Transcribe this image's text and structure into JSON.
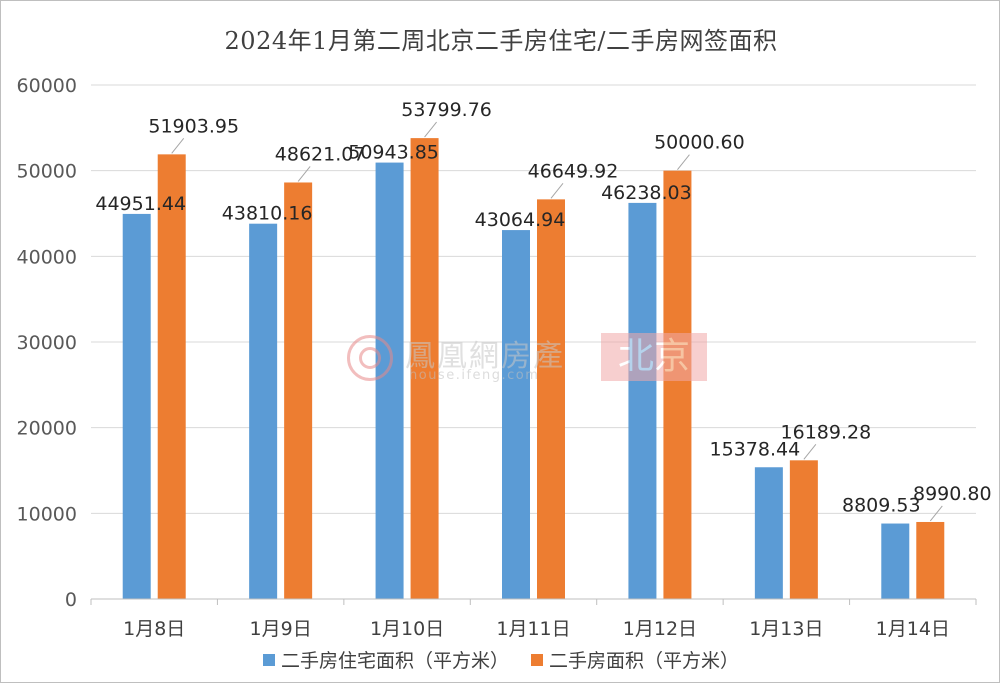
{
  "chart_data": {
    "type": "bar",
    "title": "2024年1月第二周北京二手房住宅/二手房网签面积",
    "categories": [
      "1月8日",
      "1月9日",
      "1月10日",
      "1月11日",
      "1月12日",
      "1月13日",
      "1月14日"
    ],
    "series": [
      {
        "name": "二手房住宅面积（平方米）",
        "color": "#5b9bd5",
        "values": [
          44951.44,
          43810.16,
          50943.85,
          43064.94,
          46238.03,
          15378.44,
          8809.53
        ],
        "labels": [
          "44951.44",
          "43810.16",
          "50943.85",
          "43064.94",
          "46238.03",
          "15378.44",
          "8809.53"
        ]
      },
      {
        "name": "二手房面积（平方米）",
        "color": "#ed7d31",
        "values": [
          51903.95,
          48621.07,
          53799.76,
          46649.92,
          50000.6,
          16189.28,
          8990.8
        ],
        "labels": [
          "51903.95",
          "48621.07",
          "53799.76",
          "46649.92",
          "50000.60",
          "16189.28",
          "8990.80"
        ]
      }
    ],
    "yticks": [
      "0",
      "10000",
      "20000",
      "30000",
      "40000",
      "50000",
      "60000"
    ],
    "ylim": [
      0,
      60000
    ],
    "grid": true,
    "legend_position": "bottom"
  },
  "watermark": {
    "name": "鳳凰網房產",
    "url": "house.ifeng.com",
    "city": "北京",
    "logo_icon": "ifeng-phoenix-logo-icon"
  }
}
